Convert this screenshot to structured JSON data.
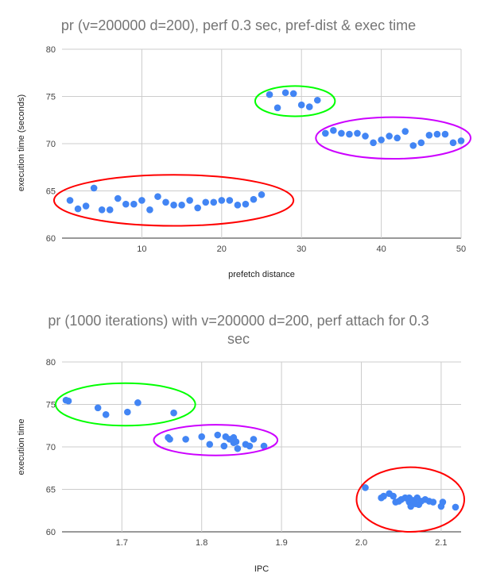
{
  "chart_data": [
    {
      "type": "scatter",
      "title": "pr (v=200000 d=200), perf 0.3 sec, pref-dist & exec time",
      "xlabel": "prefetch distance",
      "ylabel": "execution time (seconds)",
      "xlim": [
        0,
        50
      ],
      "ylim": [
        60,
        80
      ],
      "x_ticks": [
        10,
        20,
        30,
        40,
        50
      ],
      "y_ticks": [
        60,
        65,
        70,
        75,
        80
      ],
      "grid": true,
      "legend": "none",
      "point_color": "#4285f4",
      "series": [
        {
          "x": [
            1,
            2,
            3,
            4,
            5,
            6,
            7,
            8,
            9,
            10,
            11,
            12,
            13,
            14,
            15,
            16,
            17,
            18,
            19,
            20,
            21,
            22,
            23,
            24,
            25,
            26,
            27,
            28,
            29,
            30,
            31,
            32,
            33,
            34,
            35,
            36,
            37,
            38,
            39,
            40,
            41,
            42,
            43,
            44,
            45,
            46,
            47,
            48,
            49,
            50
          ],
          "y": [
            64.0,
            63.1,
            63.4,
            65.3,
            63.0,
            63.0,
            64.2,
            63.6,
            63.6,
            64.0,
            63.0,
            64.4,
            63.8,
            63.5,
            63.5,
            64.0,
            63.2,
            63.8,
            63.8,
            64.0,
            64.0,
            63.5,
            63.6,
            64.1,
            64.6,
            75.2,
            73.8,
            75.4,
            75.3,
            74.1,
            73.9,
            74.6,
            71.1,
            71.4,
            71.1,
            71.0,
            71.1,
            70.8,
            70.1,
            70.4,
            70.8,
            70.6,
            71.3,
            69.8,
            70.1,
            70.9,
            71.0,
            71.0,
            70.1,
            70.3
          ]
        }
      ],
      "annotations": [
        {
          "shape": "ellipse",
          "color": "#ff0000",
          "cx": 14,
          "cy": 64,
          "rx": 15,
          "ry": 2.7
        },
        {
          "shape": "ellipse",
          "color": "#00ff00",
          "cx": 29.2,
          "cy": 74.5,
          "rx": 5,
          "ry": 1.6
        },
        {
          "shape": "ellipse",
          "color": "#cc00ff",
          "cx": 41.5,
          "cy": 70.6,
          "rx": 9.7,
          "ry": 2.2
        }
      ]
    },
    {
      "type": "scatter",
      "title_lines": [
        "pr (1000 iterations) with v=200000 d=200, perf attach for 0.3",
        "sec"
      ],
      "xlabel": "IPC",
      "ylabel": "execution time",
      "xlim": [
        1.625,
        2.125
      ],
      "ylim": [
        60,
        80
      ],
      "x_ticks": [
        1.7,
        1.8,
        1.9,
        2.0,
        2.1
      ],
      "y_ticks": [
        60,
        65,
        70,
        75,
        80
      ],
      "grid": true,
      "legend": "none",
      "point_color": "#4285f4",
      "series": [
        {
          "x": [
            1.63,
            1.633,
            1.67,
            1.707,
            1.68,
            1.72,
            1.765,
            1.758,
            1.76,
            1.78,
            1.8,
            1.81,
            1.82,
            1.828,
            1.83,
            1.835,
            1.84,
            1.84,
            1.843,
            1.845,
            1.855,
            1.86,
            1.865,
            1.878,
            2.005,
            2.025,
            2.028,
            2.035,
            2.04,
            2.043,
            2.047,
            2.05,
            2.055,
            2.058,
            2.06,
            2.06,
            2.062,
            2.065,
            2.068,
            2.07,
            2.072,
            2.075,
            2.08,
            2.085,
            2.09,
            2.1,
            2.102,
            2.118
          ],
          "y": [
            75.5,
            75.4,
            74.6,
            74.1,
            73.8,
            75.2,
            74.0,
            71.1,
            70.9,
            70.9,
            71.2,
            70.3,
            71.4,
            70.1,
            71.2,
            70.9,
            71.1,
            70.5,
            70.6,
            69.8,
            70.3,
            70.1,
            70.9,
            70.1,
            65.2,
            64.0,
            64.2,
            64.5,
            64.2,
            63.5,
            63.6,
            63.8,
            64.0,
            63.9,
            63.5,
            64.0,
            63.0,
            63.7,
            63.3,
            64.0,
            63.2,
            63.6,
            63.8,
            63.6,
            63.5,
            63.0,
            63.5,
            62.9
          ]
        }
      ],
      "annotations": [
        {
          "shape": "ellipse",
          "color": "#00ff00",
          "cx": 1.7045,
          "cy": 75.0,
          "rx": 0.0875,
          "ry": 2.5
        },
        {
          "shape": "ellipse",
          "color": "#cc00ff",
          "cx": 1.8175,
          "cy": 70.8,
          "rx": 0.0775,
          "ry": 1.8
        },
        {
          "shape": "ellipse",
          "color": "#ff0000",
          "cx": 2.0615,
          "cy": 63.8,
          "rx": 0.0675,
          "ry": 3.8
        }
      ]
    }
  ]
}
